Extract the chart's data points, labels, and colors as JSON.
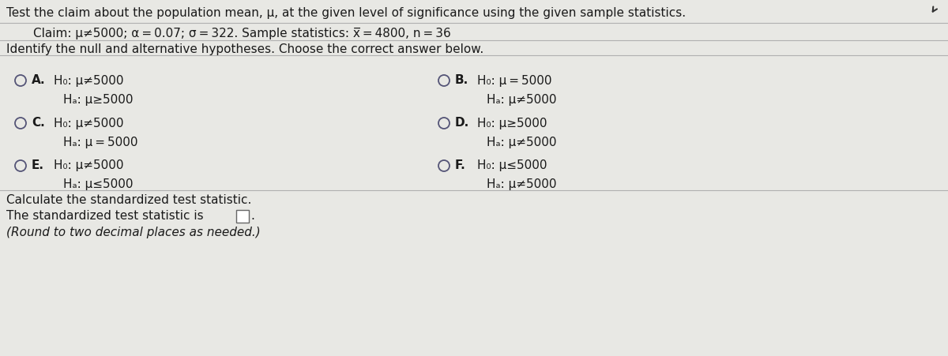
{
  "background_color": "#e8e8e4",
  "title_line": "Test the claim about the population mean, μ, at the given level of significance using the given sample statistics.",
  "claim_line": "Claim: μ≠5000; α = 0.07; σ = 322. Sample statistics: x̅ = 4800, n = 36",
  "identify_line": "Identify the null and alternative hypotheses. Choose the correct answer below.",
  "options": [
    {
      "label": "A.",
      "line1": "H₀: μ≠5000",
      "line2": "Hₐ: μ≥5000"
    },
    {
      "label": "B.",
      "line1": "H₀: μ = 5000",
      "line2": "Hₐ: μ≠5000"
    },
    {
      "label": "C.",
      "line1": "H₀: μ≠5000",
      "line2": "Hₐ: μ = 5000"
    },
    {
      "label": "D.",
      "line1": "H₀: μ≥5000",
      "line2": "Hₐ: μ≠5000"
    },
    {
      "label": "E.",
      "line1": "H₀: μ≠5000",
      "line2": "Hₐ: μ≤5000"
    },
    {
      "label": "F.",
      "line1": "H₀: μ≤5000",
      "line2": "Hₐ: μ≠5000"
    }
  ],
  "calculate_line": "Calculate the standardized test statistic.",
  "statistic_line1": "The standardized test statistic is",
  "statistic_line2": "(Round to two decimal places as needed.)",
  "text_color": "#1a1a1a",
  "label_color": "#1a1a1a",
  "line_color": "#b0b0b0",
  "circle_color": "#555577",
  "font_size": 11.0,
  "font_size_small": 10.5
}
